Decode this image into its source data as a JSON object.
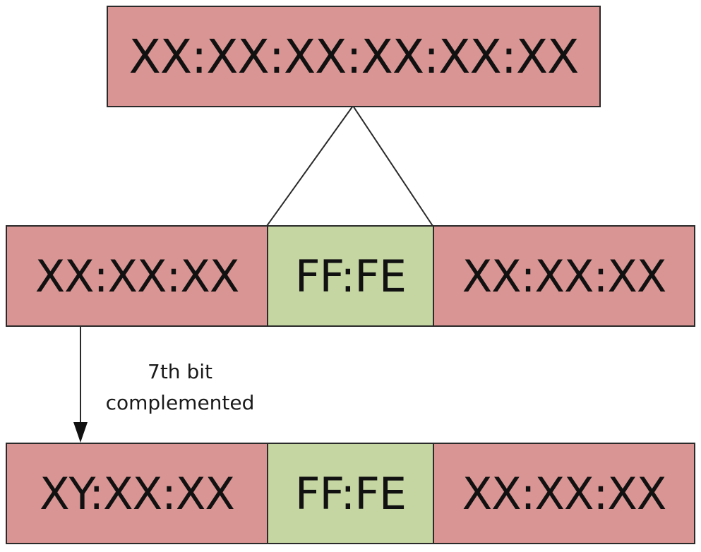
{
  "colors": {
    "mac_segment": "#d99593",
    "fffe_segment": "#c5d6a2",
    "border": "#2a2a2a",
    "text": "#111111"
  },
  "mac_address": "XX:XX:XX:XX:XX:XX",
  "split_row": {
    "left": "XX:XX:XX",
    "middle": "FF:FE",
    "right": "XX:XX:XX"
  },
  "arrow_label": {
    "line1": "7th bit",
    "line2": "complemented"
  },
  "result_row": {
    "left": "XY:XX:XX",
    "middle": "FF:FE",
    "right": "XX:XX:XX"
  }
}
